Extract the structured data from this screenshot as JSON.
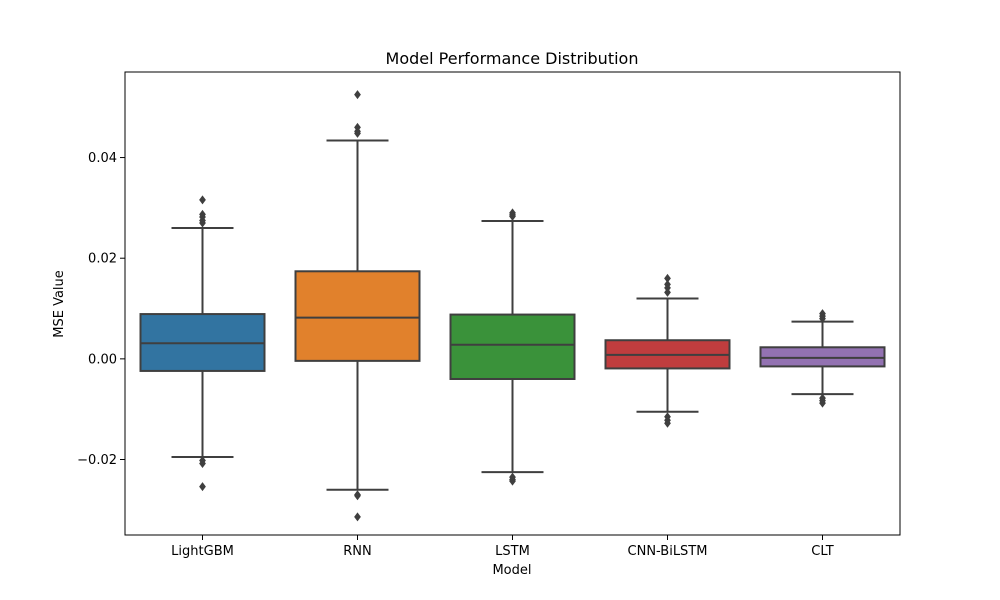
{
  "chart_data": {
    "type": "box",
    "title": "Model Performance Distribution",
    "xlabel": "Model",
    "ylabel": "MSE Value",
    "ylim": [
      -0.035,
      0.057
    ],
    "yticks": [
      -0.02,
      0.0,
      0.02,
      0.04
    ],
    "ytick_labels": [
      "−0.02",
      "0.00",
      "0.02",
      "0.04"
    ],
    "grid": false,
    "legend": "none",
    "series": [
      {
        "category": "LightGBM",
        "color": "#3274a1",
        "whisker_low": -0.0195,
        "q1": -0.0024,
        "median": 0.0031,
        "q3": 0.0089,
        "whisker_high": 0.026,
        "outliers": [
          0.0316,
          0.0287,
          0.0282,
          0.0275,
          0.027,
          -0.0202,
          -0.0208,
          -0.0254
        ]
      },
      {
        "category": "RNN",
        "color": "#e1812c",
        "whisker_low": -0.026,
        "q1": -0.0004,
        "median": 0.0082,
        "q3": 0.0174,
        "whisker_high": 0.0434,
        "outliers": [
          0.0525,
          0.046,
          0.0452,
          0.0448,
          -0.027,
          -0.0272,
          -0.0314
        ]
      },
      {
        "category": "LSTM",
        "color": "#3a923a",
        "whisker_low": -0.0225,
        "q1": -0.004,
        "median": 0.0028,
        "q3": 0.0088,
        "whisker_high": 0.0274,
        "outliers": [
          0.029,
          0.0286,
          0.0283,
          -0.0235,
          -0.024,
          -0.0243
        ]
      },
      {
        "category": "CNN-BiLSTM",
        "color": "#c03d3e",
        "whisker_low": -0.0105,
        "q1": -0.0019,
        "median": 0.0008,
        "q3": 0.0037,
        "whisker_high": 0.012,
        "outliers": [
          0.016,
          0.0148,
          0.0141,
          0.0132,
          -0.0115,
          -0.0122,
          -0.0128
        ]
      },
      {
        "category": "CLT",
        "color": "#9372b2",
        "whisker_low": -0.007,
        "q1": -0.0015,
        "median": 0.0002,
        "q3": 0.0023,
        "whisker_high": 0.0074,
        "outliers": [
          0.009,
          0.0085,
          0.008,
          -0.0078,
          -0.0083,
          -0.0088
        ]
      }
    ]
  }
}
